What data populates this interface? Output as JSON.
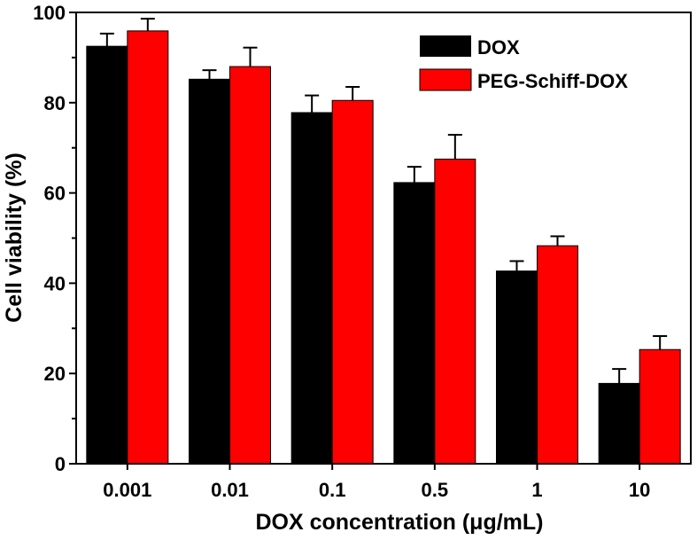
{
  "chart_data": {
    "type": "bar",
    "title": "",
    "xlabel": "DOX concentration (μg/mL)",
    "ylabel": "Cell viability (%)",
    "ylim": [
      0,
      100
    ],
    "yticks": [
      0,
      20,
      40,
      60,
      80,
      100
    ],
    "categories": [
      "0.001",
      "0.01",
      "0.1",
      "0.5",
      "1",
      "10"
    ],
    "series": [
      {
        "name": "DOX",
        "color": "#000000",
        "values": [
          92.5,
          85.2,
          77.8,
          62.3,
          42.7,
          17.8
        ],
        "errors": [
          2.8,
          2.0,
          3.8,
          3.5,
          2.2,
          3.2
        ]
      },
      {
        "name": "PEG-Schiff-DOX",
        "color": "#ff0000",
        "values": [
          95.9,
          88.0,
          80.5,
          67.5,
          48.3,
          25.3
        ],
        "errors": [
          2.7,
          4.2,
          3.0,
          5.4,
          2.1,
          3.0
        ]
      }
    ],
    "legend_position": "top-right",
    "grid": false
  }
}
